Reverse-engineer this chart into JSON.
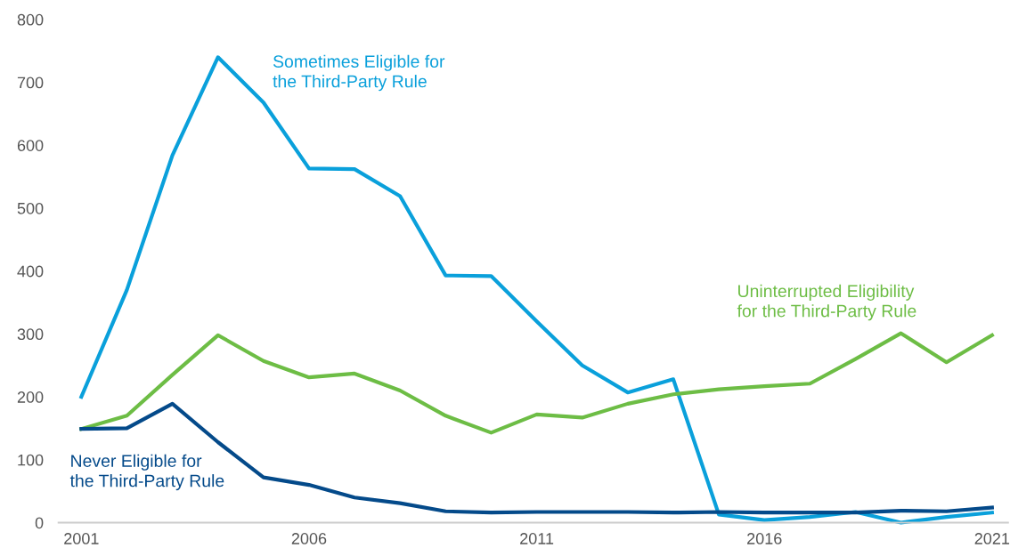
{
  "chart_data": {
    "type": "line",
    "x": [
      2001,
      2002,
      2003,
      2004,
      2005,
      2006,
      2007,
      2008,
      2009,
      2010,
      2011,
      2012,
      2013,
      2014,
      2015,
      2016,
      2017,
      2018,
      2019,
      2020,
      2021
    ],
    "series": [
      {
        "name": "Sometimes Eligible for\nthe Third-Party Rule",
        "color": "#0aa0db",
        "values": [
          200,
          370,
          584,
          740,
          668,
          563,
          562,
          519,
          393,
          392,
          320,
          250,
          207,
          228,
          13,
          4,
          9,
          17,
          0,
          9,
          16
        ]
      },
      {
        "name": "Uninterrupted Eligibility\nfor the Third-Party Rule",
        "color": "#6dbd45",
        "values": [
          149,
          170,
          235,
          298,
          257,
          231,
          237,
          210,
          170,
          143,
          172,
          167,
          189,
          204,
          212,
          217,
          221,
          260,
          301,
          255,
          298
        ]
      },
      {
        "name": "Never Eligible for\nthe Third-Party Rule",
        "color": "#044a8a",
        "values": [
          149,
          150,
          189,
          128,
          72,
          60,
          40,
          31,
          18,
          16,
          17,
          17,
          17,
          16,
          17,
          16,
          16,
          16,
          19,
          18,
          24
        ]
      }
    ],
    "xlim": [
      2000.5,
      2021.35
    ],
    "xticks": [
      2001,
      2006,
      2011,
      2016,
      2021
    ],
    "ylim": [
      0,
      800
    ],
    "yticks": [
      0,
      100,
      200,
      300,
      400,
      500,
      600,
      700,
      800
    ],
    "grid": false,
    "legend": false,
    "marker": "none",
    "line_style": "solid"
  }
}
